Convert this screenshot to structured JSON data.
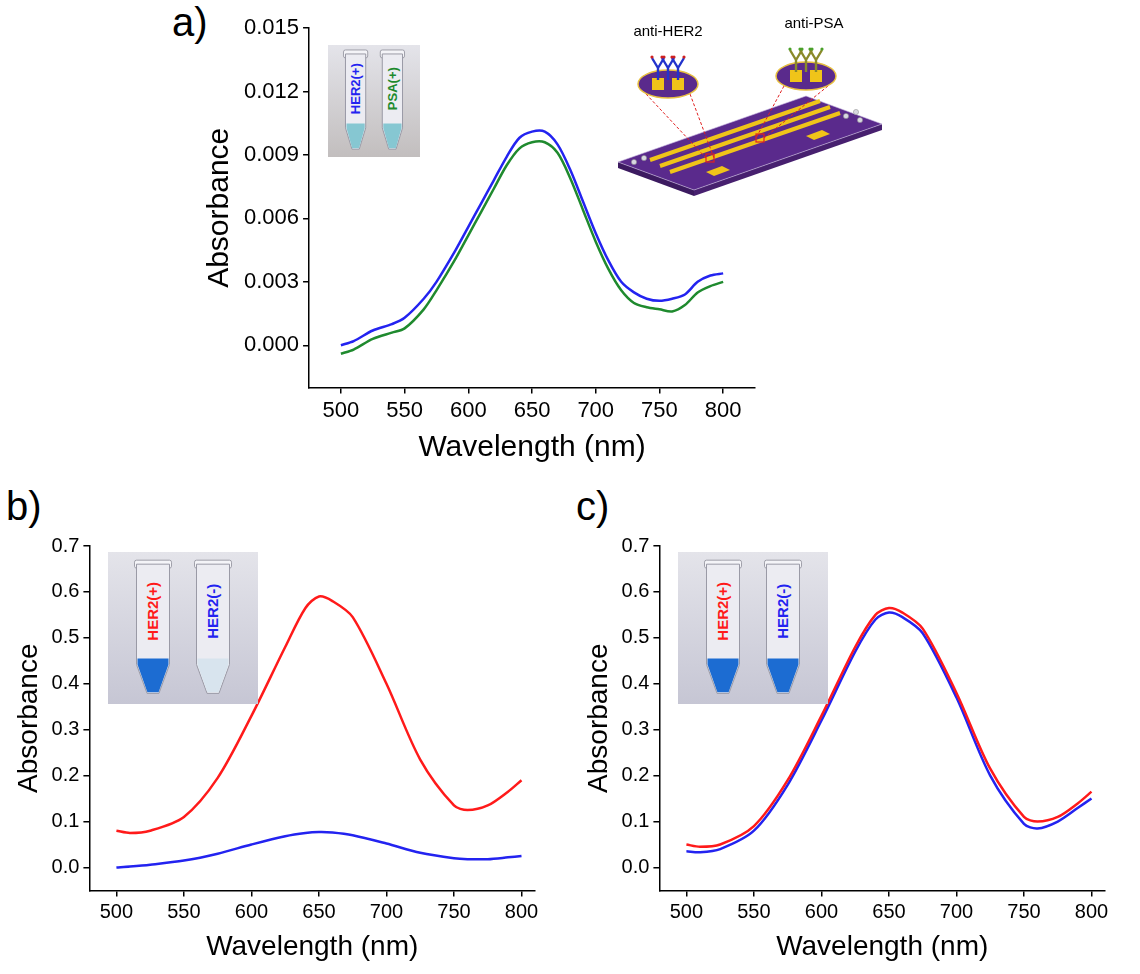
{
  "chart_data": [
    {
      "type": "line",
      "panel": "a)",
      "xlabel": "Wavelength (nm)",
      "ylabel": "Absorbance",
      "xlim": [
        475,
        825
      ],
      "xticks": [
        500,
        550,
        600,
        650,
        700,
        750,
        800
      ],
      "ylim": [
        -0.002,
        0.015
      ],
      "yticks": [
        {
          "value": 0,
          "label": "0.000"
        },
        0.003,
        0.006,
        0.009,
        0.012,
        0.015
      ],
      "x": [
        500,
        510,
        525,
        540,
        550,
        565,
        575,
        590,
        600,
        610,
        620,
        630,
        640,
        650,
        660,
        670,
        680,
        690,
        700,
        710,
        720,
        730,
        740,
        750,
        760,
        770,
        780,
        790,
        800
      ],
      "series": [
        {
          "name": "HER2(+)",
          "color": "#2323f0",
          "values": [
            0.0,
            0.0002,
            0.0007,
            0.001,
            0.0013,
            0.0022,
            0.003,
            0.0045,
            0.0056,
            0.0067,
            0.0078,
            0.0089,
            0.0098,
            0.0101,
            0.0101,
            0.0095,
            0.0083,
            0.0068,
            0.0053,
            0.004,
            0.003,
            0.0025,
            0.0022,
            0.0021,
            0.0022,
            0.0024,
            0.003,
            0.0033,
            0.0034
          ]
        },
        {
          "name": "PSA(+)",
          "color": "#1f8a2e",
          "values": [
            -0.0004,
            -0.0002,
            0.0003,
            0.0006,
            0.0008,
            0.0017,
            0.0026,
            0.0041,
            0.0052,
            0.0063,
            0.0074,
            0.0085,
            0.0093,
            0.0096,
            0.0096,
            0.0091,
            0.0079,
            0.0064,
            0.0049,
            0.0036,
            0.0026,
            0.002,
            0.0018,
            0.0017,
            0.0016,
            0.0019,
            0.0025,
            0.0028,
            0.003
          ]
        }
      ],
      "annotations": [
        "anti-HER2",
        "anti-PSA"
      ]
    },
    {
      "type": "line",
      "panel": "b)",
      "xlabel": "Wavelength (nm)",
      "ylabel": "Absorbance",
      "xlim": [
        480,
        810
      ],
      "xticks": [
        500,
        550,
        600,
        650,
        700,
        750,
        800
      ],
      "ylim": [
        -0.05,
        0.7
      ],
      "yticks": [
        {
          "value": 0,
          "label": "0.0"
        },
        0.1,
        0.2,
        0.3,
        0.4,
        0.5,
        0.6,
        0.7
      ],
      "x": [
        500,
        510,
        525,
        550,
        575,
        600,
        625,
        640,
        650,
        660,
        675,
        700,
        725,
        750,
        760,
        775,
        790,
        800
      ],
      "series": [
        {
          "name": "HER2(+)",
          "color": "#ff1a1a",
          "values": [
            0.08,
            0.075,
            0.08,
            0.11,
            0.195,
            0.33,
            0.48,
            0.565,
            0.59,
            0.58,
            0.545,
            0.4,
            0.235,
            0.135,
            0.125,
            0.135,
            0.165,
            0.19
          ]
        },
        {
          "name": "HER2(-)",
          "color": "#2323f0",
          "values": [
            0.0,
            0.002,
            0.006,
            0.015,
            0.03,
            0.05,
            0.068,
            0.075,
            0.077,
            0.076,
            0.07,
            0.052,
            0.032,
            0.02,
            0.018,
            0.018,
            0.022,
            0.025
          ]
        }
      ]
    },
    {
      "type": "line",
      "panel": "c)",
      "xlabel": "Wavelength (nm)",
      "ylabel": "Absorbance",
      "xlim": [
        480,
        810
      ],
      "xticks": [
        500,
        550,
        600,
        650,
        700,
        750,
        800
      ],
      "ylim": [
        -0.05,
        0.7
      ],
      "yticks": [
        {
          "value": 0,
          "label": "0.0"
        },
        0.1,
        0.2,
        0.3,
        0.4,
        0.5,
        0.6,
        0.7
      ],
      "x": [
        500,
        510,
        525,
        550,
        575,
        600,
        625,
        640,
        650,
        660,
        675,
        700,
        725,
        750,
        760,
        775,
        790,
        800
      ],
      "series": [
        {
          "name": "HER2(+)",
          "color": "#ff1a1a",
          "values": [
            0.05,
            0.045,
            0.05,
            0.09,
            0.19,
            0.33,
            0.48,
            0.55,
            0.565,
            0.555,
            0.52,
            0.38,
            0.215,
            0.11,
            0.1,
            0.11,
            0.14,
            0.165
          ]
        },
        {
          "name": "HER2(-)",
          "color": "#2323f0",
          "values": [
            0.035,
            0.033,
            0.04,
            0.08,
            0.18,
            0.32,
            0.47,
            0.54,
            0.555,
            0.545,
            0.51,
            0.37,
            0.2,
            0.095,
            0.085,
            0.1,
            0.13,
            0.15
          ]
        }
      ]
    }
  ]
}
